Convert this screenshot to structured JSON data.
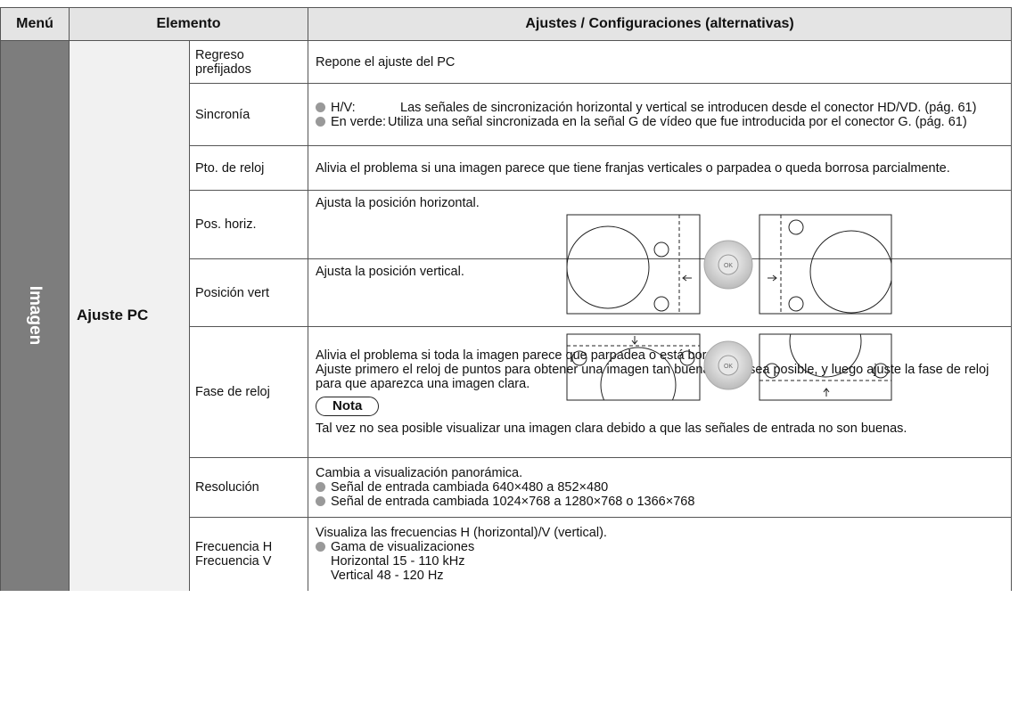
{
  "header": {
    "menu": "Menú",
    "element": "Elemento",
    "settings": "Ajustes / Configuraciones (alternativas)"
  },
  "menu": "Imagen",
  "group": "Ajuste PC",
  "icon_label": "OK",
  "rows": [
    {
      "item": "Regreso prefijados",
      "text": "Repone el ajuste del PC"
    },
    {
      "item": "Sincronía",
      "bullets": [
        {
          "label": "H/V:",
          "text": "Las señales de sincronización horizontal y vertical se introducen desde el conector HD/VD. (pág. 61)"
        },
        {
          "label": "En verde:",
          "text": "Utiliza una señal sincronizada en la señal G de vídeo que fue introducida por el conector G. (pág. 61)"
        }
      ]
    },
    {
      "item": "Pto. de reloj",
      "text": "Alivia el problema si una imagen parece que tiene franjas verticales o parpadea o queda borrosa parcialmente."
    },
    {
      "item": "Pos. horiz.",
      "text": "Ajusta la posición horizontal."
    },
    {
      "item": "Posición vert",
      "text": "Ajusta la posición vertical."
    },
    {
      "item": "Fase de reloj",
      "paragraphs": [
        "Alivia el problema si toda la imagen parece que parpadea o está borrosa.",
        "Ajuste primero el reloj de puntos para obtener una imagen tan buena como sea posible, y luego ajuste la fase de reloj para que aparezca una imagen clara."
      ],
      "note_title": "Nota",
      "note": "Tal vez no sea posible visualizar una imagen clara debido a que las señales de entrada no son buenas."
    },
    {
      "item": "Resolución",
      "text": "Cambia a visualización panorámica.",
      "bullets": [
        "Señal de entrada cambiada 640×480 a 852×480",
        "Señal de entrada cambiada 1024×768 a 1280×768 o 1366×768"
      ]
    },
    {
      "item": [
        "Frecuencia H",
        "Frecuencia V"
      ],
      "text": "Visualiza las frecuencias H (horizontal)/V (vertical).",
      "bullet": "Gama de visualizaciones",
      "lines": [
        "Horizontal 15 - 110 kHz",
        "Vertical 48 - 120 Hz"
      ]
    }
  ]
}
